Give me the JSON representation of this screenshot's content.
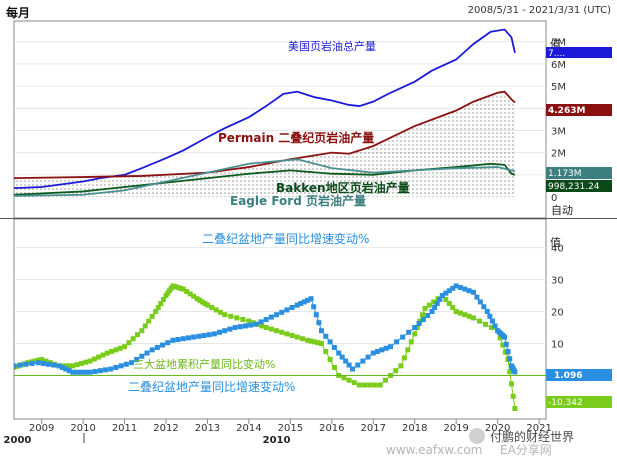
{
  "header": {
    "frequency": "每月",
    "date_range": "2008/5/31 - 2021/3/31 (UTC)"
  },
  "top_panel": {
    "axis_unit_label": "值",
    "y_ticks": [
      "7M",
      "6M",
      "5M",
      "4M",
      "3M",
      "2M",
      "1M",
      "0"
    ],
    "auto_label": "自动",
    "labels": {
      "us_total": "美国页岩油总产量",
      "permian": "Permain 二叠纪页岩油产量",
      "bakken": "Bakken地区页岩油产量",
      "eagle_ford": "Eagle Ford 页岩油产量"
    },
    "last_values": {
      "us_total": "7.... ",
      "permian": "4.263M",
      "eagle_ford": "1.173M",
      "bakken": "998,231.24"
    }
  },
  "bottom_panel": {
    "axis_unit_label": "值",
    "y_ticks": [
      "40",
      "30",
      "20",
      "10",
      "0"
    ],
    "auto_label": "自动",
    "labels": {
      "permian_yoy_top": "二叠纪盆地产量同比增速变动%",
      "three_basin": "三大盆地累积产量同比变动%",
      "permian_yoy_bottom": "二叠纪盆地产量同比增速变动%"
    },
    "last_values": {
      "blue": "1.096",
      "green": "-10.342"
    }
  },
  "x_axis": {
    "years": [
      "2009",
      "2010",
      "2011",
      "2012",
      "2013",
      "2014",
      "2015",
      "2016",
      "2017",
      "2018",
      "2019",
      "2020",
      "2021"
    ],
    "decades": [
      "2000",
      "2010"
    ]
  },
  "watermark": {
    "url": "www.eafxw.com",
    "brand": "EA分享网",
    "account": "付鹏的财经世界"
  },
  "colors": {
    "us_total": "#1a1ad8",
    "permian": "#8b1010",
    "bakken": "#0a5a1e",
    "eagle_ford": "#4a9090",
    "blue_yoy": "#2a8fe0",
    "green_yoy": "#7acc1a"
  },
  "chart_data": [
    {
      "type": "line",
      "title": "",
      "ylabel": "值",
      "ylim": [
        0,
        7800000
      ],
      "x_range": [
        "2008-05",
        "2021-03"
      ],
      "series": [
        {
          "name": "美国页岩油总产量",
          "x": [
            "2008-05",
            "2009-01",
            "2010-01",
            "2010-06",
            "2011-01",
            "2011-06",
            "2012-01",
            "2012-06",
            "2013-01",
            "2013-06",
            "2014-01",
            "2014-06",
            "2014-11",
            "2015-03",
            "2015-08",
            "2016-01",
            "2016-06",
            "2016-09",
            "2017-01",
            "2017-06",
            "2018-01",
            "2018-06",
            "2019-01",
            "2019-06",
            "2019-11",
            "2020-03",
            "2020-05",
            "2020-06"
          ],
          "values": [
            400000,
            450000,
            700000,
            850000,
            1000000,
            1300000,
            1750000,
            2100000,
            2700000,
            3100000,
            3600000,
            4100000,
            4650000,
            4750000,
            4500000,
            4350000,
            4150000,
            4100000,
            4300000,
            4700000,
            5200000,
            5700000,
            6200000,
            6900000,
            7450000,
            7550000,
            7200000,
            6500000
          ]
        },
        {
          "name": "Permain 二叠纪页岩油产量",
          "x": [
            "2008-05",
            "2010-01",
            "2011-06",
            "2013-01",
            "2014-01",
            "2015-01",
            "2016-01",
            "2016-06",
            "2017-01",
            "2018-01",
            "2019-01",
            "2019-06",
            "2020-01",
            "2020-03",
            "2020-05",
            "2020-06"
          ],
          "values": [
            850000,
            900000,
            950000,
            1100000,
            1350000,
            1700000,
            2000000,
            1950000,
            2300000,
            3200000,
            3900000,
            4300000,
            4700000,
            4750000,
            4400000,
            4263000
          ]
        },
        {
          "name": "Bakken地区页岩油产量",
          "x": [
            "2008-05",
            "2010-01",
            "2012-01",
            "2014-01",
            "2015-01",
            "2016-01",
            "2017-01",
            "2018-01",
            "2019-01",
            "2019-11",
            "2020-03",
            "2020-05",
            "2020-06"
          ],
          "values": [
            100000,
            250000,
            650000,
            1050000,
            1200000,
            1050000,
            1000000,
            1200000,
            1350000,
            1500000,
            1450000,
            1050000,
            998231.24
          ]
        },
        {
          "name": "Eagle Ford 页岩油产量",
          "x": [
            "2008-05",
            "2010-01",
            "2011-01",
            "2012-01",
            "2013-01",
            "2014-01",
            "2015-03",
            "2016-01",
            "2017-01",
            "2018-01",
            "2019-01",
            "2020-01",
            "2020-05",
            "2020-06"
          ],
          "values": [
            50000,
            100000,
            300000,
            700000,
            1100000,
            1500000,
            1700000,
            1300000,
            1100000,
            1200000,
            1300000,
            1350000,
            1200000,
            1173000
          ]
        }
      ]
    },
    {
      "type": "line",
      "title": "",
      "ylabel": "值",
      "ylim": [
        -13,
        48
      ],
      "x_range": [
        "2008-05",
        "2021-03"
      ],
      "series": [
        {
          "name": "三大盆地累积产量同比变动%",
          "x": [
            "2008-05",
            "2008-09",
            "2009-01",
            "2009-06",
            "2009-10",
            "2010-03",
            "2010-08",
            "2011-01",
            "2011-06",
            "2011-10",
            "2012-01",
            "2012-03",
            "2012-06",
            "2012-10",
            "2013-01",
            "2013-06",
            "2014-01",
            "2014-06",
            "2014-12",
            "2015-06",
            "2015-10",
            "2016-03",
            "2016-09",
            "2017-03",
            "2017-09",
            "2018-01",
            "2018-04",
            "2018-09",
            "2019-01",
            "2019-06",
            "2020-01",
            "2020-04",
            "2020-06"
          ],
          "values": [
            2.5,
            4,
            5,
            3,
            3,
            4.5,
            7,
            9,
            14,
            20,
            25,
            28,
            27,
            24,
            22,
            19,
            17,
            15,
            13,
            11,
            10,
            0,
            -3,
            -3,
            3,
            13,
            21,
            25,
            20,
            18,
            14,
            5,
            -10.342
          ]
        },
        {
          "name": "二叠纪盆地产量同比增速变动%",
          "x": [
            "2008-05",
            "2008-12",
            "2009-06",
            "2009-10",
            "2010-03",
            "2010-09",
            "2011-03",
            "2011-09",
            "2012-03",
            "2012-09",
            "2013-03",
            "2013-09",
            "2014-03",
            "2014-09",
            "2015-03",
            "2015-07",
            "2015-10",
            "2016-03",
            "2016-07",
            "2017-01",
            "2017-06",
            "2018-01",
            "2018-06",
            "2018-09",
            "2019-01",
            "2019-06",
            "2019-10",
            "2020-01",
            "2020-03",
            "2020-05",
            "2020-06"
          ],
          "values": [
            3,
            4,
            3,
            1,
            1,
            2,
            4,
            8,
            11,
            12,
            13,
            15,
            16,
            19,
            22,
            24,
            14,
            7,
            2,
            7,
            9,
            15,
            20,
            25,
            28,
            26,
            20,
            14,
            12,
            3,
            1.096
          ]
        }
      ]
    }
  ]
}
